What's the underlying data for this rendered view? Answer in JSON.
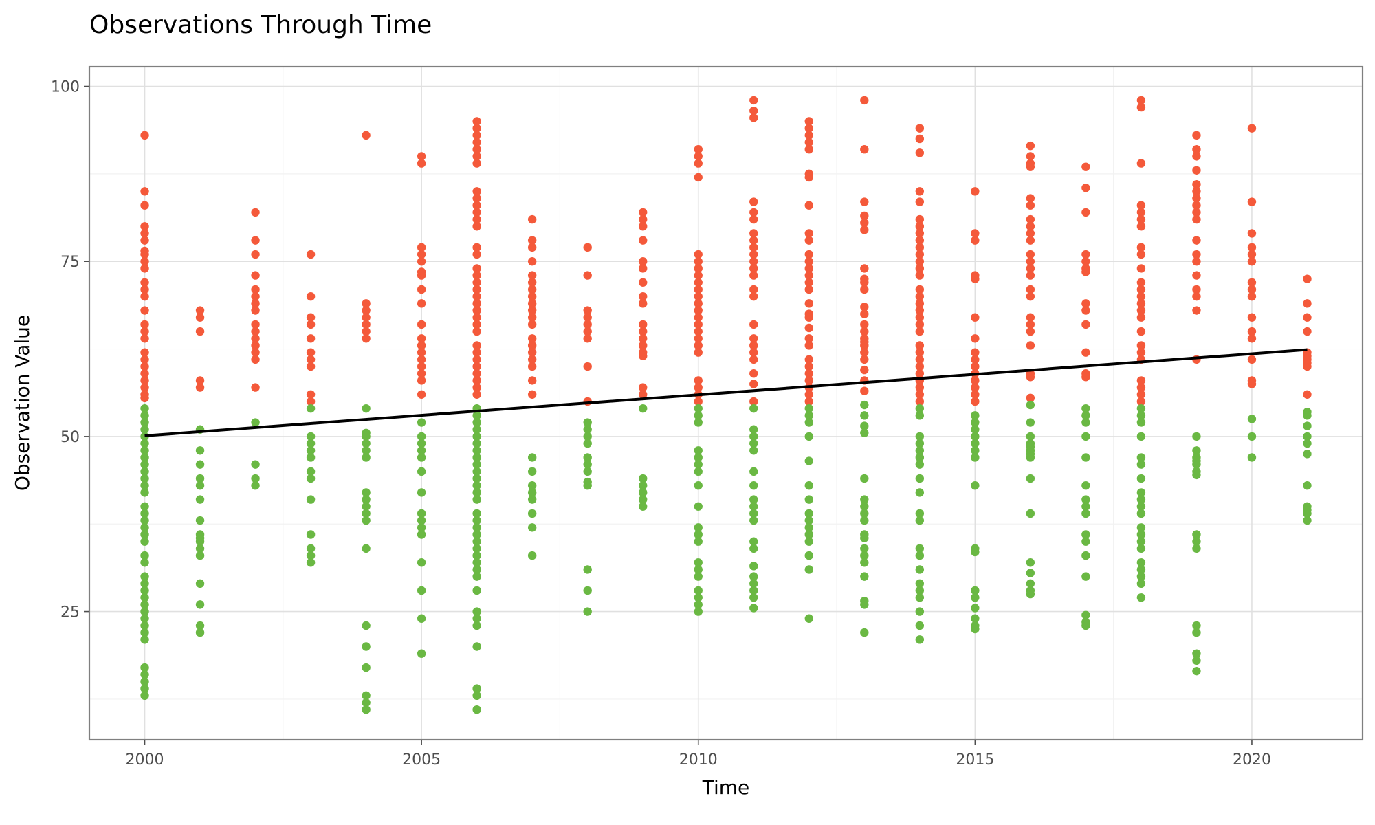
{
  "chart_data": {
    "type": "scatter",
    "title": "Observations Through Time",
    "xlabel": "Time",
    "ylabel": "Observation Value",
    "xlim": [
      1999,
      2022
    ],
    "ylim": [
      6.7,
      102.8
    ],
    "x_ticks": [
      2000,
      2005,
      2010,
      2015,
      2020
    ],
    "y_ticks": [
      25,
      50,
      75,
      100
    ],
    "grid": true,
    "legend": "none",
    "threshold": 55,
    "colors": {
      "above": "#f4593a",
      "below": "#6ab843",
      "trend": "#000000"
    },
    "trend_line": {
      "x": [
        2000,
        2021
      ],
      "y": [
        50.1,
        62.4
      ]
    },
    "series": [
      {
        "x": 2000,
        "values": [
          93,
          85,
          83,
          80,
          79,
          78,
          76.5,
          76,
          75,
          74,
          72,
          71,
          70,
          68,
          66,
          65,
          64,
          62,
          61,
          60,
          59,
          58,
          57,
          56,
          55.5,
          54,
          53,
          52,
          51,
          50,
          49,
          48,
          47,
          46,
          45,
          44,
          43,
          42,
          40,
          39,
          38,
          37,
          36,
          35,
          33,
          32,
          30,
          29,
          28,
          27,
          26,
          25,
          24,
          23,
          22,
          21,
          17,
          16,
          15,
          14,
          13
        ]
      },
      {
        "x": 2001,
        "values": [
          68,
          67,
          65,
          58,
          57,
          51,
          48,
          46,
          44,
          43,
          41,
          38,
          36,
          35.5,
          35,
          34,
          33,
          29,
          26,
          23,
          22
        ]
      },
      {
        "x": 2002,
        "values": [
          82,
          78,
          76,
          73,
          71,
          70,
          69,
          68,
          66,
          65,
          64,
          63,
          62,
          61,
          57,
          52,
          46,
          44,
          43
        ]
      },
      {
        "x": 2003,
        "values": [
          76,
          70,
          67,
          66,
          64,
          62,
          61,
          60,
          56,
          55,
          54,
          50,
          49,
          48,
          47,
          45,
          44,
          41,
          36,
          34,
          33,
          32
        ]
      },
      {
        "x": 2004,
        "values": [
          93,
          69,
          68,
          67,
          66,
          65,
          64,
          54,
          50.5,
          50,
          49,
          48,
          47,
          42,
          41,
          40,
          39,
          38,
          34,
          23,
          20,
          17,
          13,
          12,
          11
        ]
      },
      {
        "x": 2005,
        "values": [
          90,
          89,
          77,
          76,
          75,
          73.5,
          73,
          71,
          69,
          66,
          64,
          63,
          62,
          61,
          60,
          59,
          58,
          56,
          52,
          50,
          49,
          48,
          47,
          45,
          42,
          39,
          38,
          37,
          36,
          32,
          28,
          24,
          19
        ]
      },
      {
        "x": 2006,
        "values": [
          95,
          94,
          93,
          92,
          91,
          90,
          89,
          85,
          84,
          83,
          82,
          81,
          80,
          77,
          76,
          74,
          73,
          72,
          71,
          70,
          69,
          68,
          67,
          66,
          65,
          63,
          62,
          61,
          60,
          59,
          58,
          57,
          56,
          54,
          53,
          52,
          51,
          50,
          49,
          48,
          47,
          46,
          45,
          44,
          43,
          42,
          41,
          39,
          38,
          37,
          36,
          35,
          34,
          33,
          32,
          31,
          30,
          28,
          25,
          24,
          23,
          20,
          14,
          13,
          11
        ]
      },
      {
        "x": 2007,
        "values": [
          81,
          78,
          77,
          75,
          73,
          72,
          71,
          70,
          69,
          68,
          67,
          66,
          64,
          63,
          62,
          61,
          60,
          58,
          56,
          47,
          45,
          43,
          42,
          41,
          39,
          37,
          33
        ]
      },
      {
        "x": 2008,
        "values": [
          77,
          73,
          68,
          67,
          66,
          65,
          64,
          60,
          55,
          52,
          51,
          50,
          49,
          47,
          46,
          45,
          43.5,
          43,
          31,
          28,
          25
        ]
      },
      {
        "x": 2009,
        "values": [
          82,
          81,
          80,
          78,
          75,
          74,
          72,
          70,
          69,
          66,
          65,
          64,
          63,
          62,
          61.5,
          57,
          56,
          54,
          44,
          43,
          42,
          41,
          40
        ]
      },
      {
        "x": 2010,
        "values": [
          91,
          90,
          89,
          87,
          76,
          75,
          74,
          73,
          72,
          71,
          70,
          69,
          68,
          67,
          66,
          65,
          64,
          63,
          62,
          58,
          57,
          56,
          55,
          54,
          53,
          52,
          48,
          47,
          46,
          45,
          43,
          40,
          37,
          36,
          35,
          32,
          31,
          30,
          28,
          27,
          26,
          25
        ]
      },
      {
        "x": 2011,
        "values": [
          98,
          96.5,
          95.5,
          83.5,
          82,
          81,
          79,
          78,
          77,
          76,
          75,
          74,
          73,
          71,
          70,
          66,
          64,
          63,
          62,
          61,
          59,
          57.5,
          55,
          54,
          51,
          50,
          49,
          48,
          45,
          43,
          41,
          40,
          39,
          38,
          35,
          34,
          31.5,
          30,
          29,
          28,
          27,
          25.5
        ]
      },
      {
        "x": 2012,
        "values": [
          95,
          94,
          93,
          92,
          91,
          87.5,
          87,
          83,
          79,
          78,
          76,
          75,
          74,
          73,
          72,
          71,
          69,
          67.5,
          67,
          65.5,
          64,
          63,
          61,
          60,
          59,
          58,
          57,
          56,
          55,
          54,
          53,
          52,
          50,
          46.5,
          43,
          41,
          39,
          38,
          37,
          36,
          35,
          33,
          31,
          24
        ]
      },
      {
        "x": 2013,
        "values": [
          98,
          91,
          83.5,
          81.5,
          80.5,
          79.5,
          74,
          72.5,
          72,
          71,
          68.5,
          67.5,
          66,
          65,
          64,
          63.5,
          63,
          62,
          61,
          59.5,
          58,
          56.5,
          54.5,
          53,
          51.5,
          50.5,
          44,
          41,
          40,
          39,
          38,
          36,
          35.5,
          34,
          33,
          32,
          30,
          26.5,
          26,
          22
        ]
      },
      {
        "x": 2014,
        "values": [
          94,
          92.5,
          90.5,
          85,
          83.5,
          81,
          80,
          79,
          78,
          77,
          76,
          75,
          74,
          73,
          71,
          70,
          69,
          68,
          67,
          66,
          65,
          63,
          62,
          61,
          60,
          59,
          58,
          57,
          56,
          55,
          54,
          53,
          50,
          49,
          48,
          47,
          46,
          44,
          42,
          39,
          38,
          34,
          33,
          31,
          29,
          28,
          27,
          25,
          23,
          21
        ]
      },
      {
        "x": 2015,
        "values": [
          85,
          79,
          78,
          73,
          72.5,
          67,
          64,
          62,
          61,
          60,
          59,
          58,
          57,
          56,
          55,
          53,
          52,
          51,
          50,
          49,
          48,
          47,
          43,
          34,
          33.5,
          28,
          27,
          25.5,
          24,
          23,
          22.5
        ]
      },
      {
        "x": 2016,
        "values": [
          91.5,
          90,
          89,
          88.5,
          84,
          83,
          81,
          80,
          79,
          78,
          76,
          75,
          74,
          73,
          71,
          70,
          67,
          66,
          65,
          63,
          59,
          58.5,
          55.5,
          54.5,
          52,
          50,
          49,
          48.5,
          48,
          47.5,
          47,
          44,
          39,
          32,
          30.5,
          29,
          28,
          27.5
        ]
      },
      {
        "x": 2017,
        "values": [
          88.5,
          85.5,
          82,
          76,
          75,
          74,
          73.5,
          69,
          68,
          66,
          62,
          59,
          58.5,
          54,
          53,
          52,
          50,
          47,
          43,
          41,
          40,
          39,
          36,
          35,
          33,
          30,
          24.5,
          23.5,
          23
        ]
      },
      {
        "x": 2018,
        "values": [
          98,
          97,
          89,
          83,
          82,
          81,
          80,
          77,
          76,
          74,
          72,
          71,
          70,
          69,
          68,
          67,
          65,
          63,
          62,
          61,
          58,
          57,
          56,
          55,
          54,
          53,
          52,
          50,
          47,
          46,
          44,
          42,
          41,
          40,
          39,
          37,
          36,
          35,
          34,
          32,
          31,
          30,
          29,
          27
        ]
      },
      {
        "x": 2019,
        "values": [
          93,
          91,
          90,
          88,
          86,
          85,
          84,
          83,
          82,
          81,
          78,
          76,
          75,
          73,
          71,
          70,
          68,
          61,
          50,
          48,
          47,
          46.5,
          46,
          45,
          44.5,
          36,
          35,
          34,
          23,
          22,
          19,
          18,
          16.5
        ]
      },
      {
        "x": 2020,
        "values": [
          94,
          83.5,
          79,
          77,
          76,
          75,
          72,
          71,
          70,
          67,
          65,
          64,
          61,
          58,
          57.5,
          52.5,
          50,
          47
        ]
      },
      {
        "x": 2021,
        "values": [
          72.5,
          69,
          67,
          65,
          62,
          61.5,
          61,
          60.5,
          60,
          56,
          53.5,
          53,
          51.5,
          50,
          49,
          47.5,
          43,
          40,
          39.5,
          39,
          38
        ]
      }
    ]
  }
}
